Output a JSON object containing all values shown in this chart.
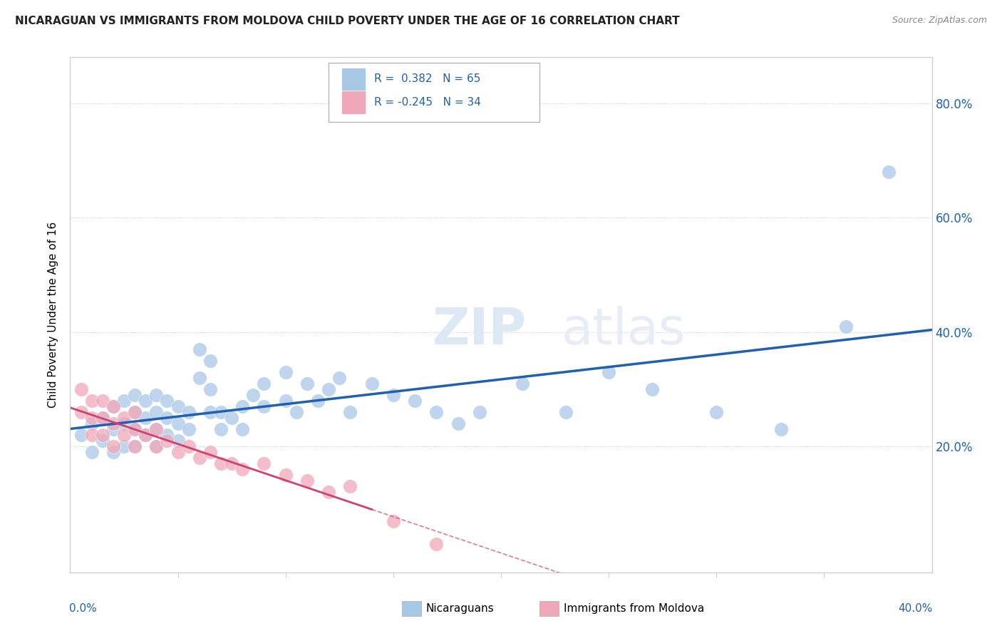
{
  "title": "NICARAGUAN VS IMMIGRANTS FROM MOLDOVA CHILD POVERTY UNDER THE AGE OF 16 CORRELATION CHART",
  "source": "Source: ZipAtlas.com",
  "ylabel": "Child Poverty Under the Age of 16",
  "xlim": [
    0.0,
    0.4
  ],
  "ylim": [
    -0.02,
    0.88
  ],
  "ytick_labels": [
    "20.0%",
    "40.0%",
    "60.0%",
    "80.0%"
  ],
  "ytick_values": [
    0.2,
    0.4,
    0.6,
    0.8
  ],
  "r_blue": 0.382,
  "n_blue": 65,
  "r_pink": -0.245,
  "n_pink": 34,
  "blue_color": "#a8c8e8",
  "pink_color": "#f0a8b8",
  "trend_blue_color": "#2060b0",
  "trend_pink_color": "#d04070",
  "legend_label_blue": "Nicaraguans",
  "legend_label_pink": "Immigrants from Moldova",
  "watermark_zip": "ZIP",
  "watermark_atlas": "atlas",
  "blue_points_x": [
    0.005,
    0.01,
    0.01,
    0.015,
    0.015,
    0.02,
    0.02,
    0.02,
    0.025,
    0.025,
    0.025,
    0.03,
    0.03,
    0.03,
    0.03,
    0.035,
    0.035,
    0.035,
    0.04,
    0.04,
    0.04,
    0.04,
    0.045,
    0.045,
    0.045,
    0.05,
    0.05,
    0.05,
    0.055,
    0.055,
    0.06,
    0.06,
    0.065,
    0.065,
    0.065,
    0.07,
    0.07,
    0.075,
    0.08,
    0.08,
    0.085,
    0.09,
    0.09,
    0.1,
    0.1,
    0.105,
    0.11,
    0.115,
    0.12,
    0.125,
    0.13,
    0.14,
    0.15,
    0.16,
    0.17,
    0.18,
    0.19,
    0.21,
    0.23,
    0.25,
    0.27,
    0.3,
    0.33,
    0.36,
    0.38
  ],
  "blue_points_y": [
    0.22,
    0.19,
    0.24,
    0.21,
    0.25,
    0.19,
    0.23,
    0.27,
    0.2,
    0.24,
    0.28,
    0.2,
    0.23,
    0.26,
    0.29,
    0.22,
    0.25,
    0.28,
    0.2,
    0.23,
    0.26,
    0.29,
    0.22,
    0.25,
    0.28,
    0.21,
    0.24,
    0.27,
    0.23,
    0.26,
    0.32,
    0.37,
    0.3,
    0.26,
    0.35,
    0.23,
    0.26,
    0.25,
    0.23,
    0.27,
    0.29,
    0.27,
    0.31,
    0.28,
    0.33,
    0.26,
    0.31,
    0.28,
    0.3,
    0.32,
    0.26,
    0.31,
    0.29,
    0.28,
    0.26,
    0.24,
    0.26,
    0.31,
    0.26,
    0.33,
    0.3,
    0.26,
    0.23,
    0.41,
    0.68
  ],
  "pink_points_x": [
    0.005,
    0.005,
    0.01,
    0.01,
    0.01,
    0.015,
    0.015,
    0.015,
    0.02,
    0.02,
    0.02,
    0.025,
    0.025,
    0.03,
    0.03,
    0.03,
    0.035,
    0.04,
    0.04,
    0.045,
    0.05,
    0.055,
    0.06,
    0.065,
    0.07,
    0.075,
    0.08,
    0.09,
    0.1,
    0.11,
    0.12,
    0.13,
    0.15,
    0.17
  ],
  "pink_points_y": [
    0.26,
    0.3,
    0.22,
    0.25,
    0.28,
    0.22,
    0.25,
    0.28,
    0.2,
    0.24,
    0.27,
    0.22,
    0.25,
    0.2,
    0.23,
    0.26,
    0.22,
    0.2,
    0.23,
    0.21,
    0.19,
    0.2,
    0.18,
    0.19,
    0.17,
    0.17,
    0.16,
    0.17,
    0.15,
    0.14,
    0.12,
    0.13,
    0.07,
    0.03
  ],
  "pink_solid_xlim": [
    0.0,
    0.14
  ],
  "pink_dash_xlim": [
    0.14,
    0.4
  ]
}
